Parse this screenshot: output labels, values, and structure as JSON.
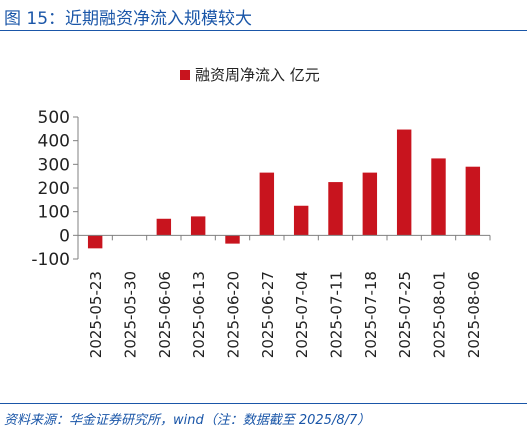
{
  "header": {
    "title": "图 15：近期融资净流入规模较大"
  },
  "footer": {
    "source": "资料来源：华金证券研究所，wind（注：数据截至 2025/8/7）"
  },
  "colors": {
    "bar": "#c8141e",
    "title": "#1a56a8",
    "axis": "#808080",
    "text": "#222222"
  },
  "chart_data": {
    "type": "bar",
    "title": "",
    "legend": {
      "label": "融资周净流入 亿元",
      "position": "top-center"
    },
    "categories": [
      "2025-05-23",
      "2025-05-30",
      "2025-06-06",
      "2025-06-13",
      "2025-06-20",
      "2025-06-27",
      "2025-07-04",
      "2025-07-11",
      "2025-07-18",
      "2025-07-25",
      "2025-08-01",
      "2025-08-06"
    ],
    "series": [
      {
        "name": "融资周净流入 亿元",
        "values": [
          -55,
          0,
          70,
          80,
          -35,
          265,
          125,
          225,
          265,
          447,
          325,
          290
        ]
      }
    ],
    "yticks": [
      "500",
      "400",
      "300",
      "200",
      "100",
      "0",
      "-100"
    ],
    "ylim": [
      -100,
      500
    ],
    "grid": false,
    "xlabel": "",
    "ylabel": ""
  }
}
